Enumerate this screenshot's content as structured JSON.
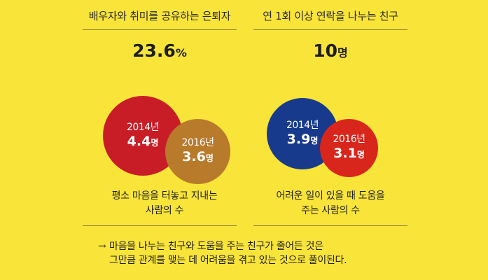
{
  "chart_data": [
    {
      "type": "bubble",
      "title": "배우자와 취미를 공유하는 은퇴자",
      "headline": {
        "value": "23.6",
        "unit": "%"
      },
      "caption": [
        "평소 마음을 터놓고 지내는",
        "사람의 수"
      ],
      "unit": "명",
      "points": [
        {
          "year": "2014년",
          "value": 4.4,
          "label": "4.4",
          "color": "#c81d26"
        },
        {
          "year": "2016년",
          "value": 3.6,
          "label": "3.6",
          "color": "#b87a2b"
        }
      ]
    },
    {
      "type": "bubble",
      "title": "연 1회 이상 연락을 나누는 친구",
      "headline": {
        "value": "10",
        "unit": "명"
      },
      "caption": [
        "어려운 일이 있을 때 도움을",
        "주는 사람의 수"
      ],
      "unit": "명",
      "points": [
        {
          "year": "2014년",
          "value": 3.9,
          "label": "3.9",
          "color": "#173a8c"
        },
        {
          "year": "2016년",
          "value": 3.1,
          "label": "3.1",
          "color": "#d8261c"
        }
      ]
    }
  ],
  "note": {
    "arrow": "→",
    "line1": "마음을 나누는 친구와 도움을 주는 친구가 줄어든 것은",
    "line2": "그만큼 관계를 맺는 데 어려움을 겪고 있는 것으로 풀이된다."
  }
}
